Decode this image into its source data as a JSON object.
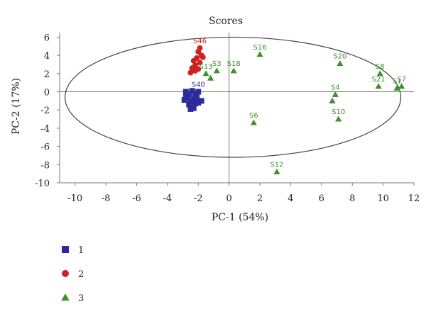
{
  "chart_data": {
    "type": "scatter",
    "title": "Scores",
    "xlabel": "PC-1 (54%)",
    "ylabel": "PC-2 (17%)",
    "xlim": [
      -11,
      12
    ],
    "ylim": [
      -10,
      6.5
    ],
    "x_ticks": [
      -10,
      -8,
      -6,
      -4,
      -2,
      0,
      2,
      4,
      6,
      8,
      10,
      12
    ],
    "y_ticks": [
      -10,
      -8,
      -6,
      -4,
      -2,
      0,
      2,
      4,
      6
    ],
    "x_tick_labels": [
      "-10",
      "-8",
      "-6",
      "-4",
      "-2",
      "0",
      "2",
      "4",
      "6",
      "8",
      "10",
      "12"
    ],
    "y_tick_labels": [
      "-10",
      "-8",
      "-6",
      "-4",
      "-2",
      "0",
      "2",
      "4",
      "6"
    ],
    "grid": false,
    "legend_position": "bottom-left",
    "confidence_ellipse": {
      "center": [
        0.25,
        -0.6
      ],
      "radii": [
        10.9,
        6.6
      ]
    },
    "series": [
      {
        "name": "1",
        "marker": "square",
        "color": "#2b2b9a",
        "points": [
          {
            "x": -2.8,
            "y": 0.0,
            "label": ""
          },
          {
            "x": -2.6,
            "y": -0.3,
            "label": ""
          },
          {
            "x": -2.4,
            "y": 0.1,
            "label": ""
          },
          {
            "x": -2.2,
            "y": -0.2,
            "label": ""
          },
          {
            "x": -2.0,
            "y": 0.0,
            "label": "S40"
          },
          {
            "x": -2.7,
            "y": -0.7,
            "label": ""
          },
          {
            "x": -2.5,
            "y": -1.0,
            "label": ""
          },
          {
            "x": -2.3,
            "y": -0.8,
            "label": ""
          },
          {
            "x": -2.1,
            "y": -0.6,
            "label": ""
          },
          {
            "x": -1.8,
            "y": -1.0,
            "label": ""
          },
          {
            "x": -2.6,
            "y": -1.4,
            "label": ""
          },
          {
            "x": -2.4,
            "y": -1.6,
            "label": ""
          },
          {
            "x": -2.2,
            "y": -1.3,
            "label": ""
          },
          {
            "x": -2.8,
            "y": -0.4,
            "label": ""
          },
          {
            "x": -2.5,
            "y": -1.9,
            "label": ""
          },
          {
            "x": -2.3,
            "y": -1.8,
            "label": ""
          },
          {
            "x": -2.9,
            "y": -0.9,
            "label": ""
          },
          {
            "x": -2.0,
            "y": -1.2,
            "label": ""
          }
        ]
      },
      {
        "name": "2",
        "marker": "circle",
        "color": "#cc2222",
        "points": [
          {
            "x": -1.9,
            "y": 4.8,
            "label": "S46"
          },
          {
            "x": -2.0,
            "y": 4.4,
            "label": ""
          },
          {
            "x": -1.8,
            "y": 4.0,
            "label": ""
          },
          {
            "x": -2.1,
            "y": 3.7,
            "label": ""
          },
          {
            "x": -2.3,
            "y": 3.4,
            "label": ""
          },
          {
            "x": -1.9,
            "y": 3.2,
            "label": ""
          },
          {
            "x": -2.2,
            "y": 2.9,
            "label": ""
          },
          {
            "x": -2.4,
            "y": 2.6,
            "label": ""
          },
          {
            "x": -2.0,
            "y": 2.5,
            "label": ""
          },
          {
            "x": -2.5,
            "y": 2.1,
            "label": ""
          },
          {
            "x": -2.2,
            "y": 2.3,
            "label": ""
          },
          {
            "x": -1.7,
            "y": 3.8,
            "label": ""
          }
        ]
      },
      {
        "name": "3",
        "marker": "triangle",
        "color": "#3f8f2f",
        "points": [
          {
            "x": 2.0,
            "y": 4.1,
            "label": "S16"
          },
          {
            "x": 7.2,
            "y": 3.1,
            "label": "S20"
          },
          {
            "x": 0.3,
            "y": 2.3,
            "label": "S18"
          },
          {
            "x": -0.8,
            "y": 2.3,
            "label": "S3"
          },
          {
            "x": -1.5,
            "y": 2.0,
            "label": "S13"
          },
          {
            "x": -1.2,
            "y": 1.5,
            "label": ""
          },
          {
            "x": 9.8,
            "y": 2.0,
            "label": "S8"
          },
          {
            "x": 9.7,
            "y": 0.6,
            "label": "S21"
          },
          {
            "x": 10.9,
            "y": 0.4,
            "label": "S1"
          },
          {
            "x": 11.2,
            "y": 0.6,
            "label": "S7"
          },
          {
            "x": 6.9,
            "y": -0.3,
            "label": "S4"
          },
          {
            "x": 6.7,
            "y": -1.0,
            "label": ""
          },
          {
            "x": 7.1,
            "y": -3.0,
            "label": "S10"
          },
          {
            "x": 1.6,
            "y": -3.4,
            "label": "S6"
          },
          {
            "x": 3.1,
            "y": -8.8,
            "label": "S12"
          }
        ]
      }
    ]
  }
}
